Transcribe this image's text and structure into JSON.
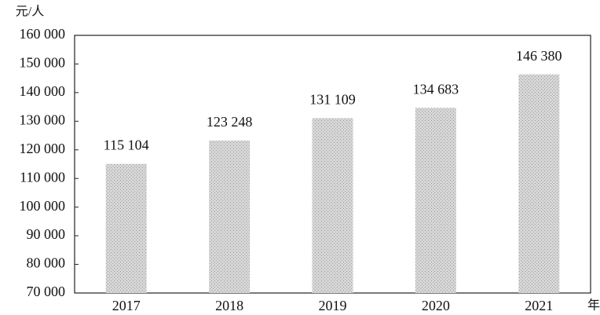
{
  "chart_data": {
    "type": "bar",
    "ylabel": "元/人",
    "xlabel": "年",
    "categories": [
      "2017",
      "2018",
      "2019",
      "2020",
      "2021"
    ],
    "values": [
      115104,
      123248,
      131109,
      134683,
      146380
    ],
    "value_labels": [
      "115 104",
      "123 248",
      "131 109",
      "134 683",
      "146 380"
    ],
    "color": "#cfcfcf",
    "ylim": [
      70000,
      160000
    ],
    "yticks": [
      {
        "value": 70000,
        "label": "70 000"
      },
      {
        "value": 80000,
        "label": "80 000"
      },
      {
        "value": 90000,
        "label": "90 000"
      },
      {
        "value": 100000,
        "label": "100 000"
      },
      {
        "value": 110000,
        "label": "110 000"
      },
      {
        "value": 120000,
        "label": "120 000"
      },
      {
        "value": 130000,
        "label": "130 000"
      },
      {
        "value": 140000,
        "label": "140 000"
      },
      {
        "value": 150000,
        "label": "150 000"
      },
      {
        "value": 160000,
        "label": "160 000"
      }
    ],
    "grid": false
  }
}
